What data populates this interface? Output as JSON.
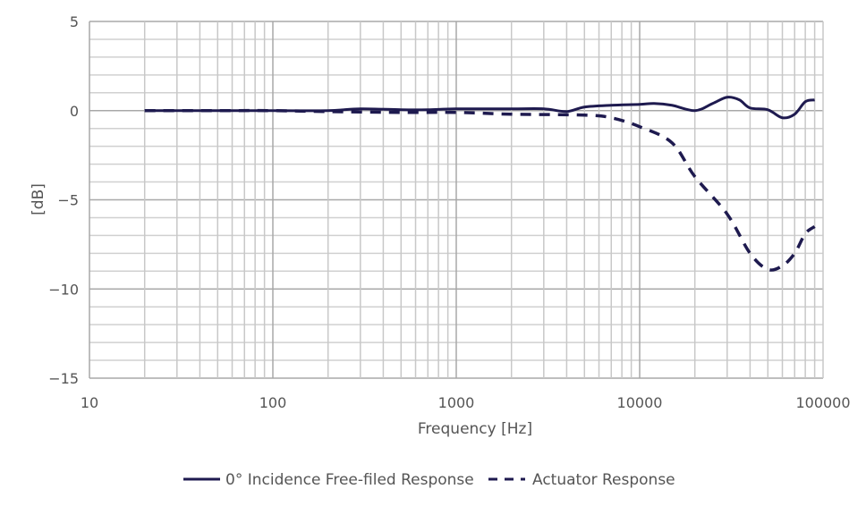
{
  "chart_data": {
    "type": "line",
    "title": "",
    "xlabel": "Frequency [Hz]",
    "ylabel": "[dB]",
    "xscale": "log",
    "xlim": [
      10,
      100000
    ],
    "ylim": [
      -15,
      5
    ],
    "xticks": [
      "10",
      "100",
      "1000",
      "10000",
      "100000"
    ],
    "yticks": [
      "5",
      "0",
      "−5",
      "−10",
      "−15"
    ],
    "grid": true,
    "legend_placement": "bottom",
    "series": [
      {
        "name": "0° Incidence Free-filed Response",
        "style": "solid",
        "color": "#1e1a4f",
        "x": [
          20,
          50,
          100,
          200,
          300,
          500,
          700,
          1000,
          2000,
          3000,
          4000,
          5000,
          7000,
          10000,
          12000,
          15000,
          20000,
          25000,
          30000,
          35000,
          40000,
          50000,
          60000,
          70000,
          80000,
          90000
        ],
        "y": [
          0,
          0,
          0,
          0,
          0.1,
          0.05,
          0.05,
          0.1,
          0.1,
          0.1,
          -0.05,
          0.2,
          0.3,
          0.35,
          0.4,
          0.3,
          0,
          0.4,
          0.75,
          0.6,
          0.15,
          0.05,
          -0.4,
          -0.2,
          0.5,
          0.6
        ]
      },
      {
        "name": "Actuator Response",
        "style": "dashed",
        "color": "#1e1a4f",
        "x": [
          20,
          50,
          100,
          200,
          500,
          1000,
          2000,
          5000,
          7000,
          10000,
          15000,
          20000,
          30000,
          40000,
          50000,
          60000,
          70000,
          80000,
          90000
        ],
        "y": [
          0,
          0,
          0,
          -0.05,
          -0.1,
          -0.1,
          -0.2,
          -0.25,
          -0.4,
          -0.9,
          -1.8,
          -3.7,
          -5.8,
          -8.0,
          -8.9,
          -8.7,
          -8.0,
          -6.9,
          -6.5
        ]
      }
    ]
  }
}
